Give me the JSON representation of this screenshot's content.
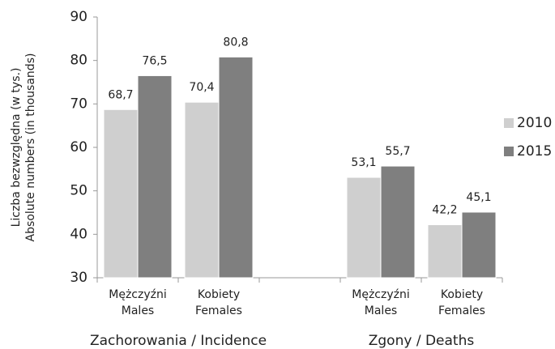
{
  "chart_data": {
    "type": "bar",
    "ylabel": [
      "Liczba bezwzględna (w tys.)",
      "Absolute numbers (in thousands)"
    ],
    "categories": [
      [
        "Mężczyźni",
        "Males"
      ],
      [
        "Kobiety",
        "Females"
      ],
      null,
      [
        "Mężczyźni",
        "Males"
      ],
      [
        "Kobiety",
        "Females"
      ]
    ],
    "group_labels": [
      "Zachorowania / Incidence",
      "Zgony / Deaths"
    ],
    "series": [
      {
        "name": "2010",
        "color": "#cfcfcf",
        "values": [
          68.7,
          70.4,
          null,
          53.1,
          42.2
        ],
        "value_labels": [
          "68,7",
          "70,4",
          null,
          "53,1",
          "42,2"
        ]
      },
      {
        "name": "2015",
        "color": "#7f7f7f",
        "values": [
          76.5,
          80.8,
          null,
          55.7,
          45.1
        ],
        "value_labels": [
          "76,5",
          "80,8",
          null,
          "55,7",
          "45,1"
        ]
      }
    ],
    "ylim": [
      30,
      90
    ],
    "yticks": [
      30,
      40,
      50,
      60,
      70,
      80,
      90
    ],
    "grid": false,
    "legend": "right"
  }
}
